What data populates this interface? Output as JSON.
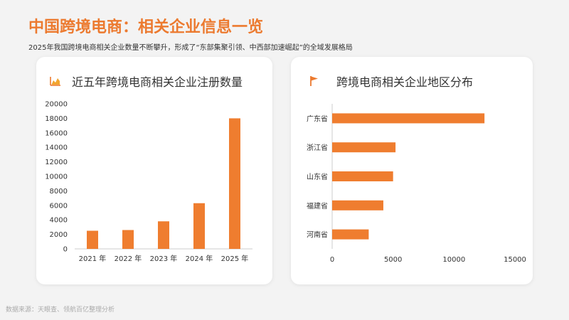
{
  "page": {
    "title": "中国跨境电商：相关企业信息一览",
    "subtitle": "2025年我国跨境电商相关企业数量不断攀升，形成了“东部集聚引领、中西部加速崛起”的全域发展格局",
    "source": "数据来源：天眼查、领航百亿整理分析"
  },
  "colors": {
    "accent": "#ec7a2f",
    "bar": "#ef7d2f",
    "axis": "#cccccc",
    "text": "#333333"
  },
  "icons": {
    "left_card": "area-chart-icon",
    "right_card": "flag-icon"
  },
  "chart_data": [
    {
      "type": "bar",
      "title": "近五年跨境电商相关企业注册数量",
      "categories": [
        "2021 年",
        "2022 年",
        "2023 年",
        "2024 年",
        "2025 年"
      ],
      "values": [
        2500,
        2600,
        3800,
        6300,
        18000
      ],
      "ylim": [
        0,
        20000
      ],
      "yticks": [
        0,
        2000,
        4000,
        6000,
        8000,
        10000,
        12000,
        14000,
        16000,
        18000,
        20000
      ],
      "xlabel": "",
      "ylabel": "",
      "grid": false
    },
    {
      "type": "bar",
      "orientation": "horizontal",
      "title": "跨境电商相关企业地区分布",
      "categories": [
        "广东省",
        "浙江省",
        "山东省",
        "福建省",
        "河南省"
      ],
      "values": [
        12500,
        5200,
        5000,
        4200,
        3000
      ],
      "xlim": [
        0,
        15000
      ],
      "xticks": [
        0,
        5000,
        10000,
        15000
      ],
      "xlabel": "",
      "ylabel": "",
      "grid": false
    }
  ]
}
